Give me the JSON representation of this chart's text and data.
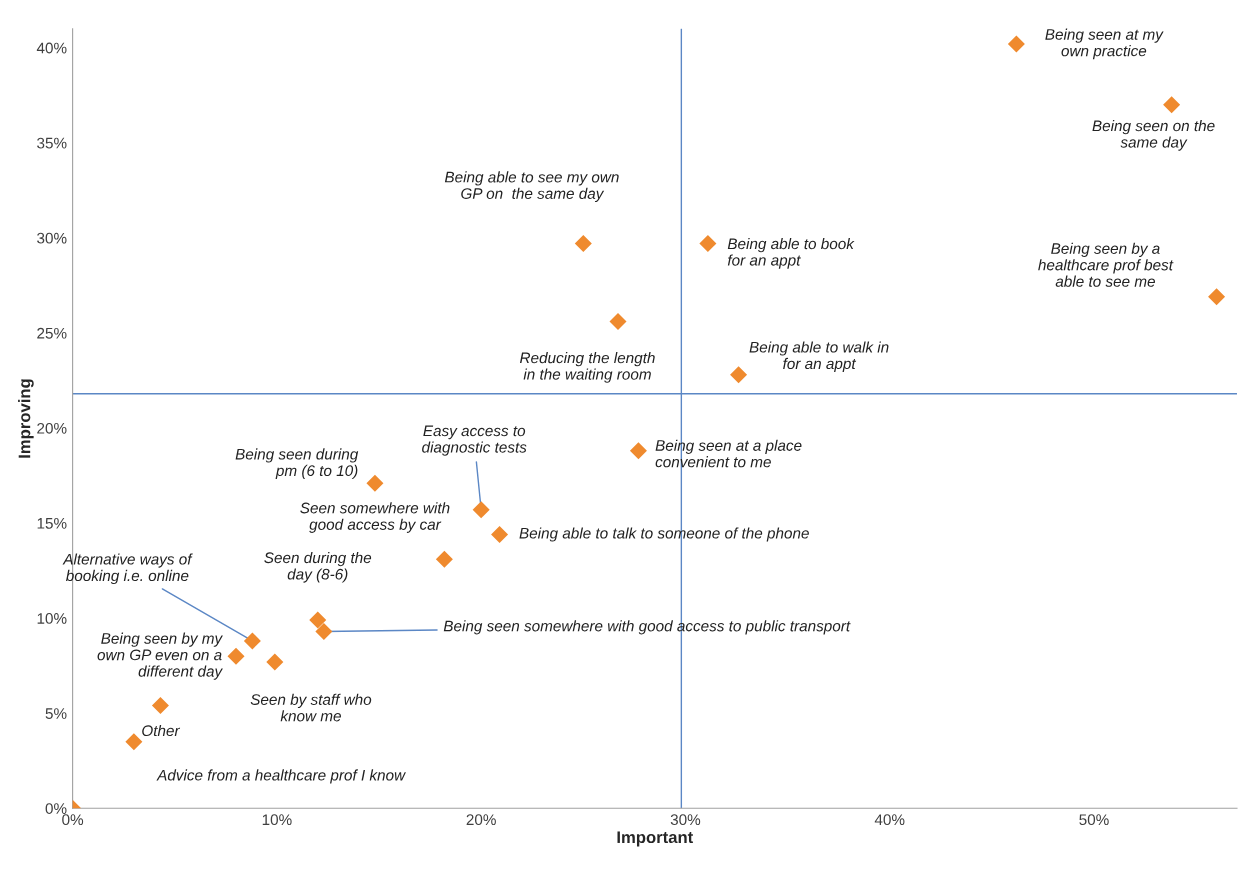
{
  "chart_data": {
    "type": "scatter",
    "xlabel": "Important",
    "ylabel": "Improving",
    "x": [
      46.2,
      53.8,
      56.0,
      25.0,
      31.1,
      26.7,
      32.6,
      27.7,
      20.0,
      20.9,
      18.2,
      14.8,
      12.0,
      12.3,
      8.8,
      8.0,
      9.9,
      4.3,
      3.0,
      0
    ],
    "series": [
      {
        "color": "#ef8a2e",
        "values": [
          40.2,
          37.0,
          26.9,
          29.7,
          29.7,
          25.6,
          22.8,
          18.8,
          15.7,
          14.4,
          13.1,
          17.1,
          9.9,
          9.3,
          8.8,
          8.0,
          7.7,
          5.4,
          3.5,
          0
        ]
      }
    ],
    "marker": "diamond",
    "xlim": [
      0,
      57
    ],
    "ylim": [
      0,
      41
    ],
    "xticks": [
      {
        "value": 0,
        "label": "0%"
      },
      {
        "value": 10,
        "label": "10%"
      },
      {
        "value": 20,
        "label": "20%"
      },
      {
        "value": 30,
        "label": "30%"
      },
      {
        "value": 40,
        "label": "40%"
      },
      {
        "value": 50,
        "label": "50%"
      }
    ],
    "yticks": [
      {
        "value": 0,
        "label": "0%"
      },
      {
        "value": 5,
        "label": "5%"
      },
      {
        "value": 10,
        "label": "10%"
      },
      {
        "value": 15,
        "label": "15%"
      },
      {
        "value": 20,
        "label": "20%"
      },
      {
        "value": 25,
        "label": "25%"
      },
      {
        "value": 30,
        "label": "30%"
      },
      {
        "value": 35,
        "label": "35%"
      },
      {
        "value": 40,
        "label": "40%"
      }
    ],
    "ref_lines": [
      {
        "axis": "x",
        "value": 29.8,
        "color": "#5b87c5"
      },
      {
        "axis": "y",
        "value": 21.8,
        "color": "#5b87c5"
      }
    ],
    "grid": false,
    "annotations": [
      {
        "text": "Being seen at my\nown practice",
        "x": 46.2,
        "y": 40.2
      },
      {
        "text": "Being seen on the\nsame day",
        "x": 53.8,
        "y": 37.0
      },
      {
        "text": "Being seen by a\nhealthcare prof best\nable to see me",
        "x": 56.0,
        "y": 26.9
      },
      {
        "text": "Being able to see my own\nGP on  the same day",
        "x": 25.0,
        "y": 29.7
      },
      {
        "text": "Being able to book\nfor an appt",
        "x": 31.1,
        "y": 29.7
      },
      {
        "text": "Reducing the length\nin the waiting room",
        "x": 26.7,
        "y": 25.6
      },
      {
        "text": "Being able to walk in\nfor an appt",
        "x": 32.6,
        "y": 22.8
      },
      {
        "text": "Being seen at a place\nconvenient to me",
        "x": 27.7,
        "y": 18.8
      },
      {
        "text": "Easy access to\ndiagnostic tests",
        "x": 20.0,
        "y": 15.7
      },
      {
        "text": "Being able to talk to someone of the phone",
        "x": 20.9,
        "y": 14.4
      },
      {
        "text": "Seen somewhere with\ngood access by car",
        "x": 18.2,
        "y": 13.1
      },
      {
        "text": "Being seen during\npm (6 to 10)",
        "x": 14.8,
        "y": 17.1
      },
      {
        "text": "Seen during the\nday (8-6)",
        "x": 12.0,
        "y": 9.9
      },
      {
        "text": "Being seen somewhere with good access to public transport",
        "x": 12.3,
        "y": 9.3
      },
      {
        "text": "Alternative ways of\nbooking i.e. online",
        "x": 8.8,
        "y": 8.8
      },
      {
        "text": "Being seen by my\nown GP even on a\ndifferent day",
        "x": 8.0,
        "y": 8.0
      },
      {
        "text": "Seen by staff who\nknow me",
        "x": 9.9,
        "y": 7.7
      },
      {
        "text": "Other",
        "x": 4.3,
        "y": 5.4
      },
      {
        "text": "Advice from a healthcare prof I know",
        "x": 3.0,
        "y": 3.5
      }
    ]
  }
}
